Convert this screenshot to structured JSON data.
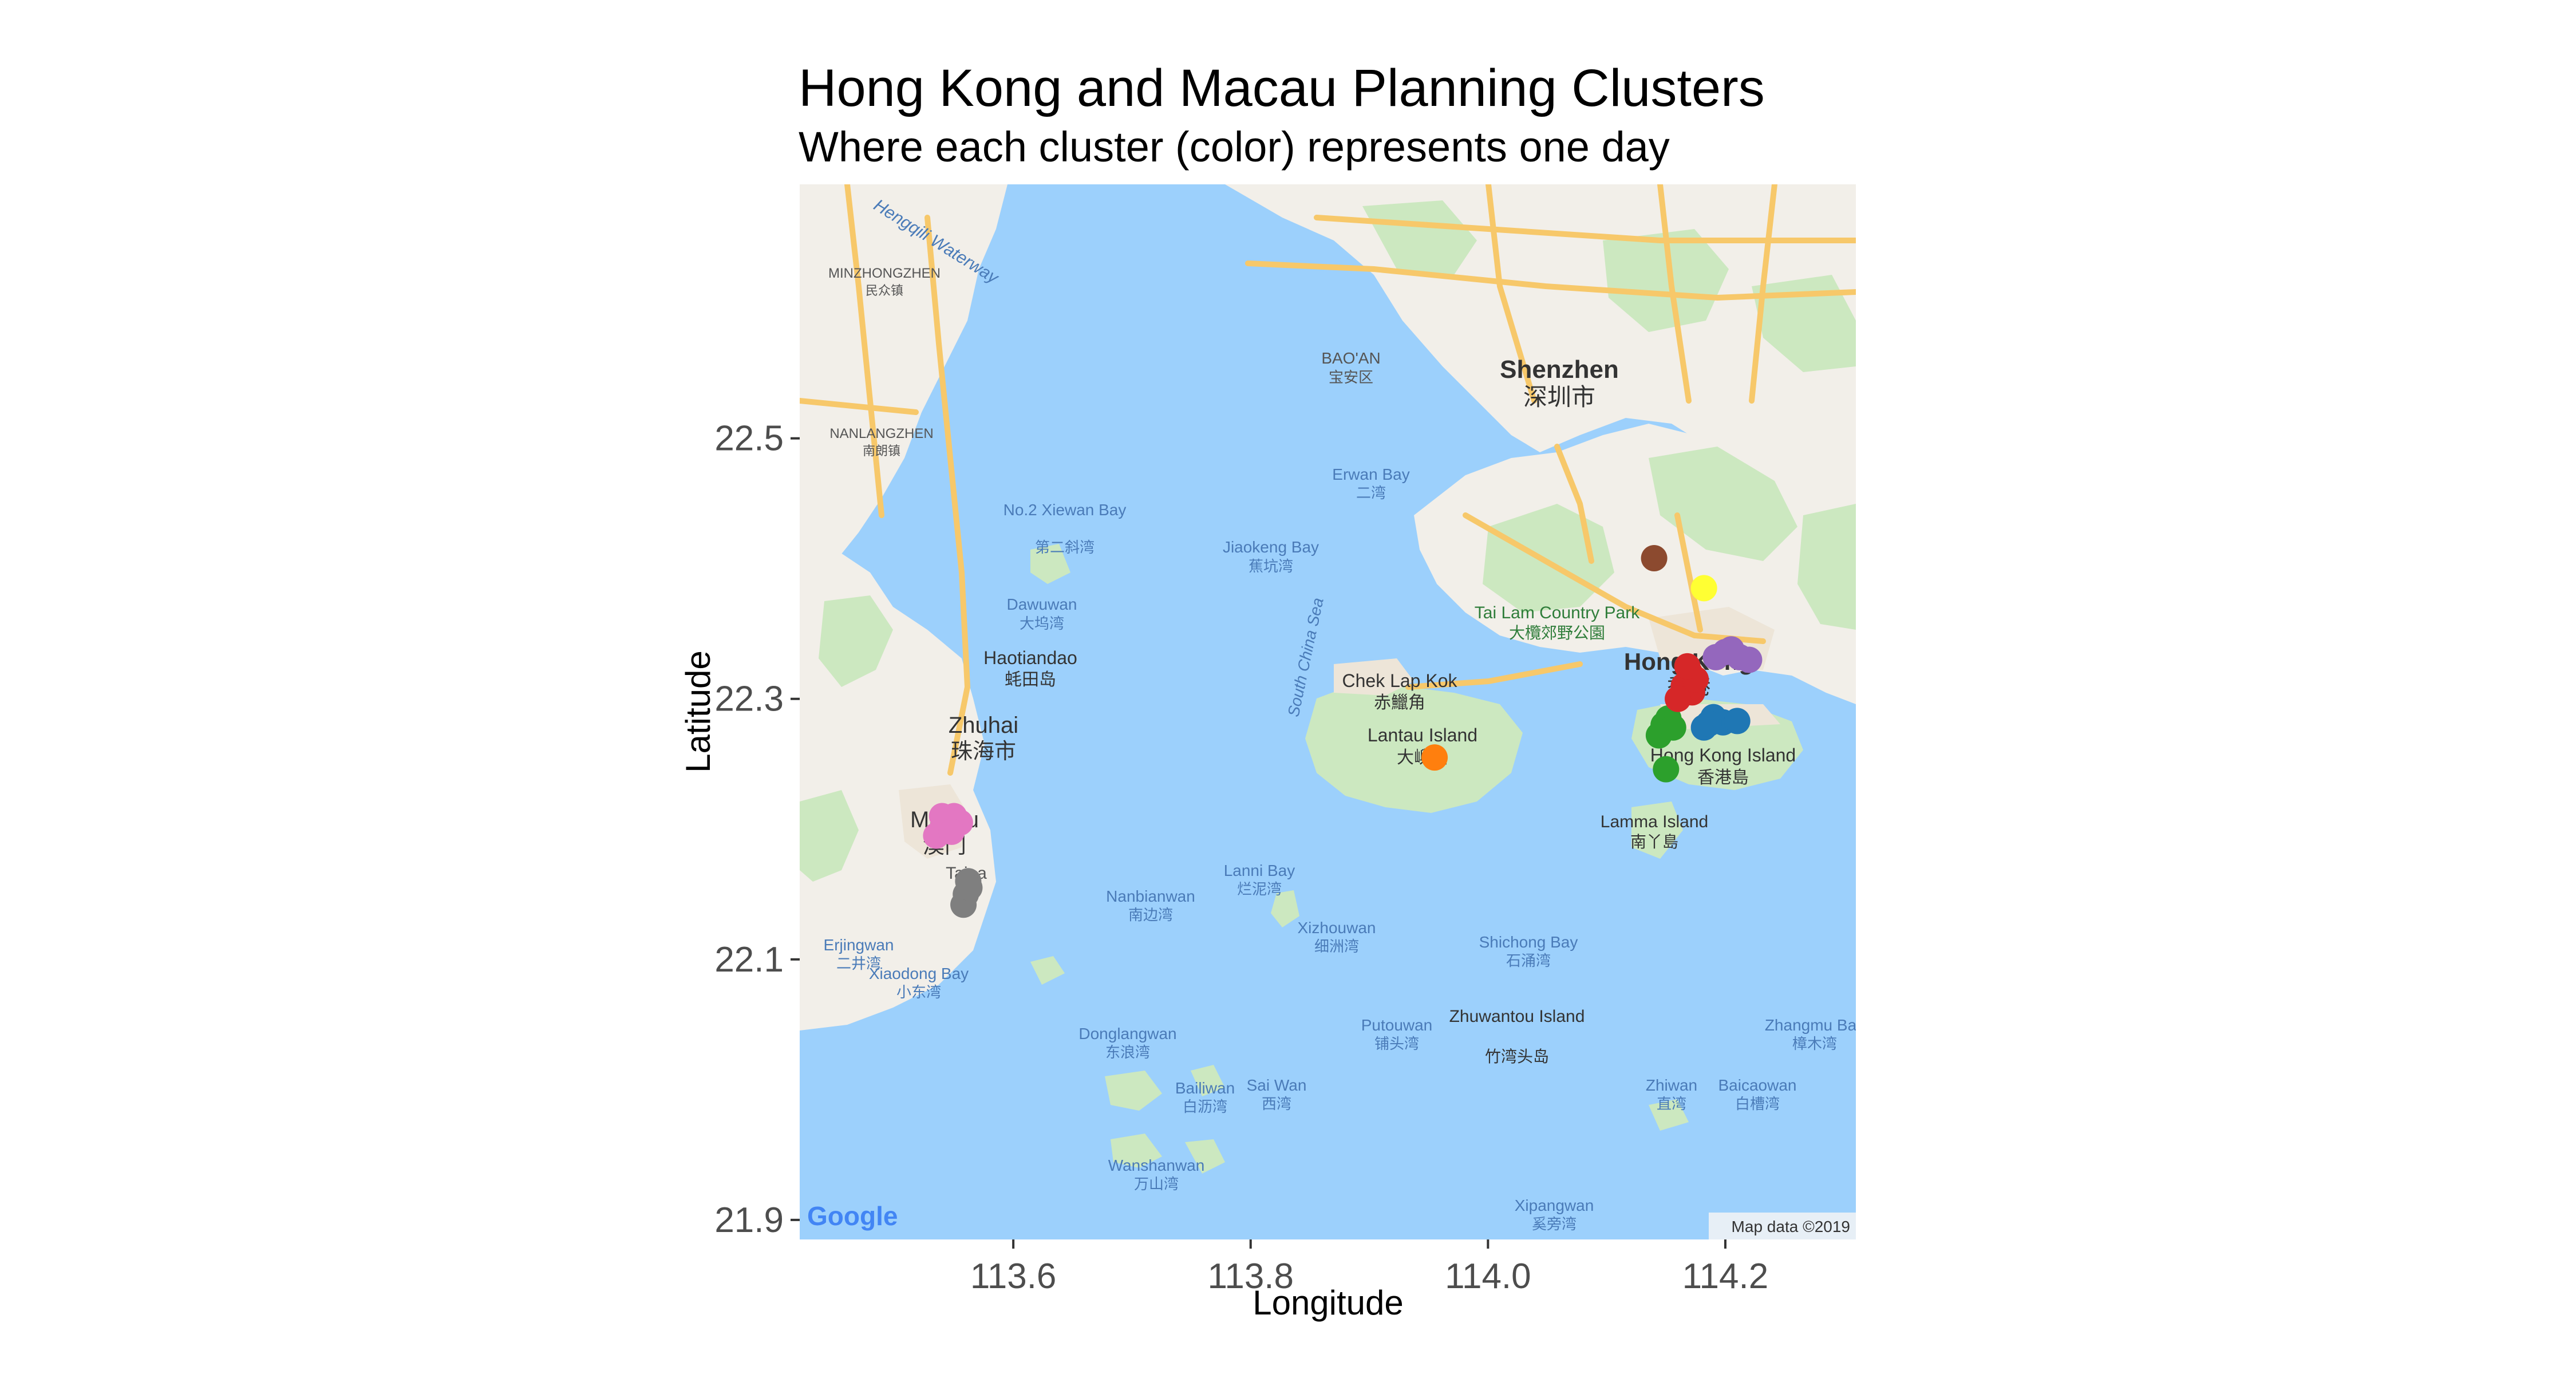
{
  "colors": {
    "water": "#9cd0fc",
    "land": "#f2efe9",
    "green": "#cce8c0",
    "urban": "#ede5d8",
    "road": "#f7c86a",
    "tick": "#333333"
  },
  "map": {
    "attribution": "Map data ©2019",
    "logo": "Google",
    "labels": {
      "shenzhen": "Shenzhen",
      "shenzhen_cn": "深圳市",
      "zhuhai": "Zhuhai",
      "zhuhai_cn": "珠海市",
      "macau": "Macau",
      "macau_cn": "澳门",
      "hongkong": "Hong Kong",
      "hongkong_cn": "香港",
      "hk_island": "Hong Kong Island",
      "hk_island_cn": "香港島",
      "lantau": "Lantau Island",
      "lantau_cn": "大嶼山",
      "chek_lap_kok": "Chek Lap Kok",
      "chek_lap_kok_cn": "赤鱲角",
      "lamma": "Lamma Island",
      "lamma_cn": "南丫島",
      "tai_lam": "Tai Lam Country Park",
      "tai_lam_cn": "大欖郊野公園",
      "south_china_sea": "South China Sea",
      "haotiandao": "Haotiandao",
      "haotiandao_cn": "蚝田岛",
      "dawuwan": "Dawuwan",
      "dawuwan_cn": "大坞湾",
      "xiewan": "No.2 Xiewan Bay",
      "xiewan_cn": "第二斜湾",
      "jiaokeng": "Jiaokeng Bay",
      "jiaokeng_cn": "蕉坑湾",
      "erwan": "Erwan Bay",
      "erwan_cn": "二湾",
      "baoan": "BAO'AN",
      "baoan_cn": "宝安区",
      "nanlangzhen": "NANLANGZHEN",
      "nanlangzhen_cn": "南朗镇",
      "minzhongzhen": "MINZHONGZHEN",
      "minzhongzhen_cn": "民众镇",
      "lanni": "Lanni Bay",
      "lanni_cn": "烂泥湾",
      "nanbianwan": "Nanbianwan",
      "nanbianwan_cn": "南边湾",
      "xizhouwan": "Xizhouwan",
      "xizhouwan_cn": "细洲湾",
      "shichong": "Shichong Bay",
      "shichong_cn": "石涌湾",
      "putouwan": "Putouwan",
      "putouwan_cn": "铺头湾",
      "zhuwantou": "Zhuwantou Island",
      "zhuwantou_cn": "竹湾头岛",
      "donglangwan": "Donglangwan",
      "donglangwan_cn": "东浪湾",
      "bailiwan": "Bailiwan",
      "bailiwan_cn": "白沥湾",
      "saiwan": "Sai Wan",
      "saiwan_cn": "西湾",
      "wanshanwan": "Wanshanwan",
      "wanshanwan_cn": "万山湾",
      "xiaodong": "Xiaodong Bay",
      "xiaodong_cn": "小东湾",
      "erjingwan": "Erjingwan",
      "erjingwan_cn": "二井湾",
      "zhiwan": "Zhiwan",
      "zhiwan_cn": "直湾",
      "baicaowan": "Baicaowan",
      "baicaowan_cn": "白槽湾",
      "zhangmu": "Zhangmu Bay",
      "zhangmu_cn": "樟木湾",
      "xipangwan": "Xipangwan",
      "xipangwan_cn": "奚旁湾",
      "taipa": "Taipa",
      "hengqin_waterway": "Hengqili Waterway"
    }
  },
  "chart_data": {
    "type": "scatter",
    "title": "Hong Kong and Macau Planning Clusters",
    "subtitle": "Where each cluster (color) represents one day",
    "xlabel": "Longitude",
    "ylabel": "Latitude",
    "xlim": [
      113.42,
      114.31
    ],
    "ylim": [
      21.885,
      22.695
    ],
    "x_ticks": [
      113.6,
      113.8,
      114.0,
      114.2
    ],
    "x_tick_labels": [
      "113.6",
      "113.8",
      "114.0",
      "114.2"
    ],
    "y_ticks": [
      21.9,
      22.1,
      22.3,
      22.5
    ],
    "y_tick_labels": [
      "21.9",
      "22.1",
      "22.3",
      "22.5"
    ],
    "grid": false,
    "legend": "none",
    "series": [
      {
        "color": "#e377c2",
        "points": [
          [
            113.545,
            22.205
          ],
          [
            113.54,
            22.2
          ],
          [
            113.55,
            22.21
          ],
          [
            113.535,
            22.195
          ],
          [
            113.555,
            22.205
          ],
          [
            113.54,
            22.21
          ],
          [
            113.548,
            22.198
          ]
        ]
      },
      {
        "color": "#7f7f7f",
        "points": [
          [
            113.562,
            22.16
          ],
          [
            113.56,
            22.15
          ],
          [
            113.558,
            22.142
          ],
          [
            113.563,
            22.155
          ]
        ]
      },
      {
        "color": "#ff7f0e",
        "points": [
          [
            113.955,
            22.255
          ]
        ]
      },
      {
        "color": "#2ca02c",
        "points": [
          [
            114.148,
            22.28
          ],
          [
            114.152,
            22.285
          ],
          [
            114.144,
            22.272
          ],
          [
            114.156,
            22.278
          ],
          [
            114.15,
            22.246
          ]
        ]
      },
      {
        "color": "#1f77b4",
        "points": [
          [
            114.182,
            22.278
          ],
          [
            114.19,
            22.286
          ],
          [
            114.198,
            22.282
          ],
          [
            114.21,
            22.283
          ],
          [
            114.186,
            22.281
          ]
        ]
      },
      {
        "color": "#d62728",
        "points": [
          [
            114.17,
            22.32
          ],
          [
            114.165,
            22.31
          ],
          [
            114.172,
            22.305
          ],
          [
            114.16,
            22.3
          ],
          [
            114.175,
            22.315
          ],
          [
            114.168,
            22.325
          ]
        ]
      },
      {
        "color": "#9467bd",
        "points": [
          [
            114.192,
            22.332
          ],
          [
            114.2,
            22.336
          ],
          [
            114.212,
            22.332
          ],
          [
            114.22,
            22.33
          ],
          [
            114.205,
            22.338
          ]
        ]
      },
      {
        "color": "#8c4a2f",
        "points": [
          [
            114.14,
            22.408
          ]
        ]
      },
      {
        "color": "#ffff33",
        "points": [
          [
            114.182,
            22.385
          ]
        ]
      }
    ]
  }
}
